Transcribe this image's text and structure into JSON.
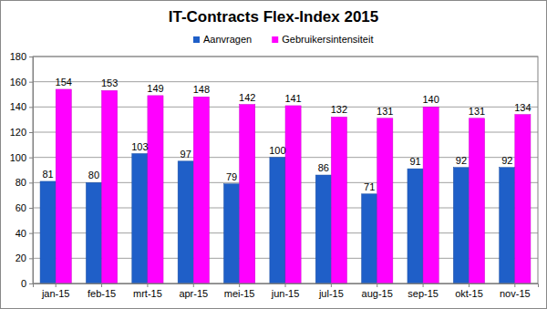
{
  "chart_data": {
    "type": "bar",
    "title": "IT-Contracts Flex-Index 2015",
    "categories": [
      "jan-15",
      "feb-15",
      "mrt-15",
      "apr-15",
      "mei-15",
      "jun-15",
      "jul-15",
      "aug-15",
      "sep-15",
      "okt-15",
      "nov-15"
    ],
    "series": [
      {
        "name": "Aanvragen",
        "color": "#1f5fc8",
        "values": [
          81,
          80,
          103,
          97,
          79,
          100,
          86,
          71,
          91,
          92,
          92
        ]
      },
      {
        "name": "Gebruikersintensiteit",
        "color": "#ff00ff",
        "values": [
          154,
          153,
          149,
          148,
          142,
          141,
          132,
          131,
          140,
          131,
          134
        ]
      }
    ],
    "ylim": [
      0,
      180
    ],
    "yticks": [
      0,
      20,
      40,
      60,
      80,
      100,
      120,
      140,
      160,
      180
    ],
    "grid": true,
    "legend": "top",
    "data_labels": true
  }
}
